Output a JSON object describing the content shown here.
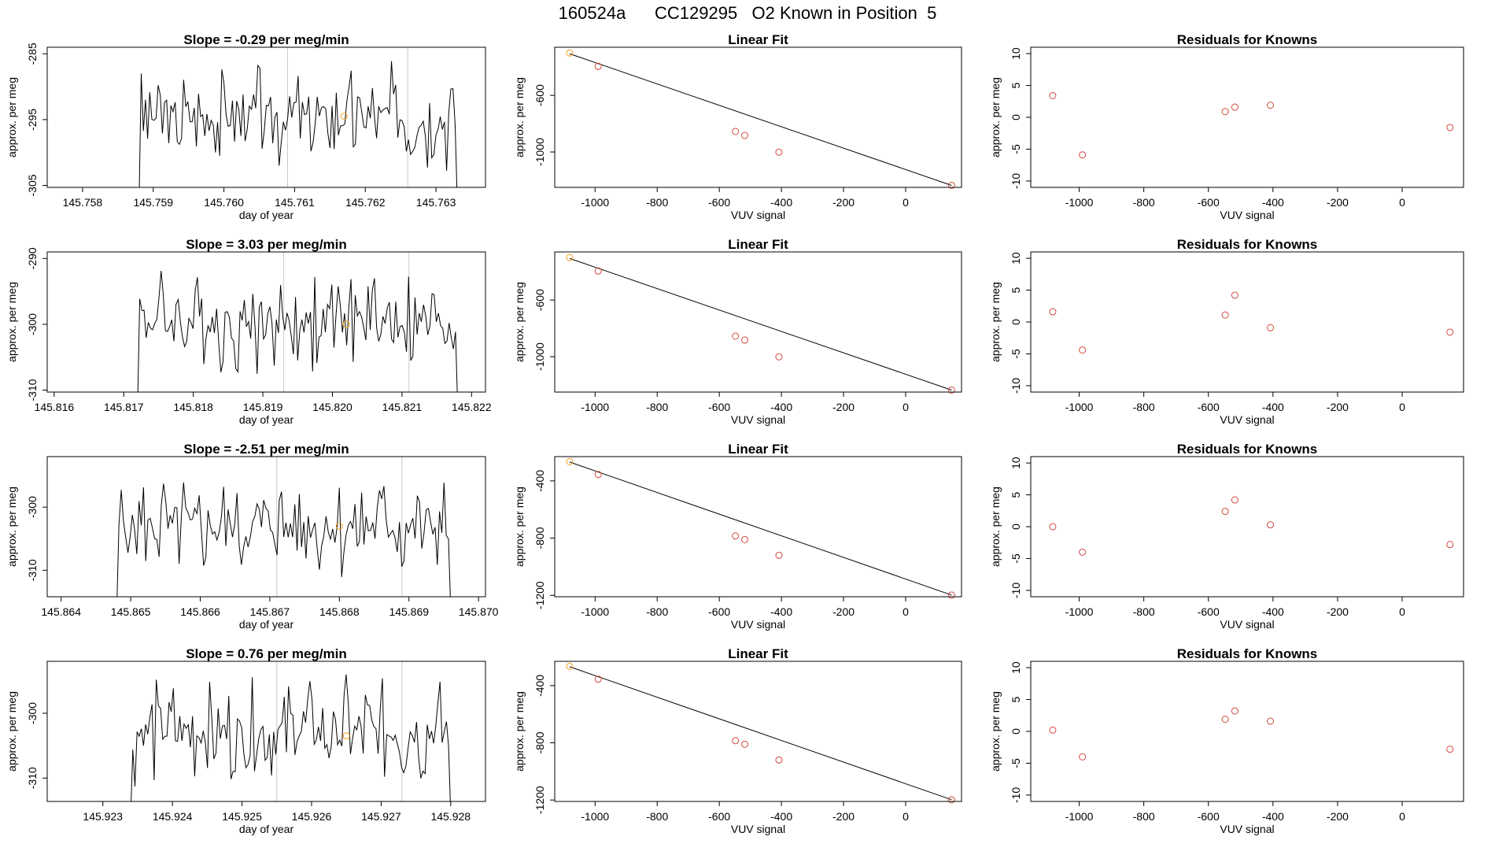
{
  "figure": {
    "title": "160524a      CC129295   O2 Known in Position  5",
    "colors": {
      "trace": "#000000",
      "point": "#d0483c",
      "highlight": "#f0a020",
      "grid": "#c8c8c8"
    }
  },
  "charts": [
    {
      "row": 1,
      "timeseries": {
        "title": "Slope =  -0.29  per meg/min",
        "xlabel": "day of year",
        "ylabel": "approx. per meg",
        "xlim": [
          145.7575,
          145.7637
        ],
        "ylim": [
          -305.3,
          -284.0
        ],
        "xticks": [
          145.758,
          145.759,
          145.76,
          145.761,
          145.762,
          145.763
        ],
        "xtick_labels": [
          "145.758",
          "145.759",
          "145.760",
          "145.761",
          "145.762",
          "145.763"
        ],
        "yticks": [
          -285,
          -295,
          -305
        ],
        "ytick_labels": [
          "-285",
          "-295",
          "-305"
        ],
        "vlines": [
          145.7609,
          145.7626
        ],
        "trace_start": 145.7588,
        "trace_end": 145.7633,
        "marker": {
          "x": 145.7617,
          "y": -294.5
        }
      },
      "linear_fit": {
        "title": "Linear Fit",
        "xlabel": "VUV signal",
        "ylabel": "approx. per meg",
        "xlim": [
          -1130,
          180
        ],
        "ylim": [
          -1250,
          -260
        ],
        "xticks": [
          -1000,
          -800,
          -600,
          -400,
          -200,
          0
        ],
        "yticks": [
          -600,
          -1000
        ],
        "highlight": {
          "x": -1082,
          "y": -300
        },
        "points": [
          {
            "x": -990,
            "y": -395
          },
          {
            "x": -548,
            "y": -855
          },
          {
            "x": -518,
            "y": -883
          },
          {
            "x": -408,
            "y": -1001
          },
          {
            "x": 148,
            "y": -1236
          }
        ],
        "line": [
          [
            -1082,
            -306
          ],
          [
            148,
            -1236
          ]
        ]
      },
      "residuals": {
        "title": "Residuals for Knowns",
        "xlabel": "VUV signal",
        "ylabel": "approx. per meg",
        "xlim": [
          -1150,
          190
        ],
        "ylim": [
          -11,
          11
        ],
        "xticks": [
          -1000,
          -800,
          -600,
          -400,
          -200,
          0
        ],
        "yticks": [
          10,
          5,
          0,
          -5,
          -10
        ],
        "points": [
          {
            "x": -1082,
            "y": 3.4
          },
          {
            "x": -990,
            "y": -5.9
          },
          {
            "x": -548,
            "y": 0.9
          },
          {
            "x": -518,
            "y": 1.6
          },
          {
            "x": -408,
            "y": 1.9
          },
          {
            "x": 148,
            "y": -1.6
          }
        ]
      }
    },
    {
      "row": 2,
      "timeseries": {
        "title": "Slope =  3.03  per meg/min",
        "xlabel": "day of year",
        "ylabel": "approx. per meg",
        "xlim": [
          145.8159,
          145.8222
        ],
        "ylim": [
          -310.3,
          -289.0
        ],
        "xticks": [
          145.816,
          145.817,
          145.818,
          145.819,
          145.82,
          145.821,
          145.822
        ],
        "xtick_labels": [
          "145.816",
          "145.817",
          "145.818",
          "145.819",
          "145.820",
          "145.821",
          "145.822"
        ],
        "yticks": [
          -290,
          -300,
          -310
        ],
        "ytick_labels": [
          "-290",
          "-300",
          "-310"
        ],
        "vlines": [
          145.8193,
          145.8211
        ],
        "trace_start": 145.8172,
        "trace_end": 145.8218,
        "marker": {
          "x": 145.8202,
          "y": -300
        }
      },
      "linear_fit": {
        "title": "Linear Fit",
        "xlabel": "VUV signal",
        "ylabel": "approx. per meg",
        "xlim": [
          -1130,
          180
        ],
        "ylim": [
          -1250,
          -260
        ],
        "xticks": [
          -1000,
          -800,
          -600,
          -400,
          -200,
          0
        ],
        "yticks": [
          -600,
          -1000
        ],
        "highlight": {
          "x": -1082,
          "y": -300
        },
        "points": [
          {
            "x": -990,
            "y": -395
          },
          {
            "x": -548,
            "y": -855
          },
          {
            "x": -518,
            "y": -883
          },
          {
            "x": -408,
            "y": -1001
          },
          {
            "x": 148,
            "y": -1236
          }
        ],
        "line": [
          [
            -1082,
            -306
          ],
          [
            148,
            -1236
          ]
        ]
      },
      "residuals": {
        "title": "Residuals for Knowns",
        "xlabel": "VUV signal",
        "ylabel": "approx. per meg",
        "xlim": [
          -1150,
          190
        ],
        "ylim": [
          -11,
          11
        ],
        "xticks": [
          -1000,
          -800,
          -600,
          -400,
          -200,
          0
        ],
        "yticks": [
          10,
          5,
          0,
          -5,
          -10
        ],
        "points": [
          {
            "x": -1082,
            "y": 1.6
          },
          {
            "x": -990,
            "y": -4.4
          },
          {
            "x": -548,
            "y": 1.1
          },
          {
            "x": -518,
            "y": 4.2
          },
          {
            "x": -408,
            "y": -0.9
          },
          {
            "x": 148,
            "y": -1.6
          }
        ]
      }
    },
    {
      "row": 3,
      "timeseries": {
        "title": "Slope =  -2.51  per meg/min",
        "xlabel": "day of year",
        "ylabel": "approx. per meg",
        "xlim": [
          145.8638,
          145.8701
        ],
        "ylim": [
          -314.2,
          -292.0
        ],
        "xticks": [
          145.864,
          145.865,
          145.866,
          145.867,
          145.868,
          145.869,
          145.87
        ],
        "xtick_labels": [
          "145.864",
          "145.865",
          "145.866",
          "145.867",
          "145.868",
          "145.869",
          "145.870"
        ],
        "yticks": [
          -300,
          -310
        ],
        "ytick_labels": [
          "-300",
          "-310"
        ],
        "vlines": [
          145.8671,
          145.8689
        ],
        "trace_start": 145.8648,
        "trace_end": 145.8696,
        "marker": {
          "x": 145.868,
          "y": -303
        }
      },
      "linear_fit": {
        "title": "Linear Fit",
        "xlabel": "VUV signal",
        "ylabel": "approx. per meg",
        "xlim": [
          -1130,
          180
        ],
        "ylim": [
          -1210,
          -230
        ],
        "xticks": [
          -1000,
          -800,
          -600,
          -400,
          -200,
          0
        ],
        "yticks": [
          -400,
          -800,
          -1200
        ],
        "highlight": {
          "x": -1082,
          "y": -265
        },
        "points": [
          {
            "x": -990,
            "y": -355
          },
          {
            "x": -548,
            "y": -785
          },
          {
            "x": -518,
            "y": -810
          },
          {
            "x": -408,
            "y": -920
          },
          {
            "x": 148,
            "y": -1198
          }
        ],
        "line": [
          [
            -1082,
            -268
          ],
          [
            148,
            -1198
          ]
        ]
      },
      "residuals": {
        "title": "Residuals for Knowns",
        "xlabel": "VUV signal",
        "ylabel": "approx. per meg",
        "xlim": [
          -1150,
          190
        ],
        "ylim": [
          -11,
          11
        ],
        "xticks": [
          -1000,
          -800,
          -600,
          -400,
          -200,
          0
        ],
        "yticks": [
          10,
          5,
          0,
          -5,
          -10
        ],
        "points": [
          {
            "x": -1082,
            "y": 0
          },
          {
            "x": -990,
            "y": -4.0
          },
          {
            "x": -548,
            "y": 2.4
          },
          {
            "x": -518,
            "y": 4.2
          },
          {
            "x": -408,
            "y": 0.3
          },
          {
            "x": 148,
            "y": -2.8
          }
        ]
      }
    },
    {
      "row": 4,
      "timeseries": {
        "title": "Slope =  0.76  per meg/min",
        "xlabel": "day of year",
        "ylabel": "approx. per meg",
        "xlim": [
          145.9222,
          145.9285
        ],
        "ylim": [
          -313.6,
          -292.0
        ],
        "xticks": [
          145.923,
          145.924,
          145.925,
          145.926,
          145.927,
          145.928
        ],
        "xtick_labels": [
          "145.923",
          "145.924",
          "145.925",
          "145.926",
          "145.927",
          "145.928"
        ],
        "yticks": [
          -300,
          -310
        ],
        "ytick_labels": [
          "-300",
          "-310"
        ],
        "vlines": [
          145.9255,
          145.9273
        ],
        "trace_start": 145.9234,
        "trace_end": 145.928,
        "marker": {
          "x": 145.9265,
          "y": -303.5
        }
      },
      "linear_fit": {
        "title": "Linear Fit",
        "xlabel": "VUV signal",
        "ylabel": "approx. per meg",
        "xlim": [
          -1130,
          180
        ],
        "ylim": [
          -1210,
          -230
        ],
        "xticks": [
          -1000,
          -800,
          -600,
          -400,
          -200,
          0
        ],
        "yticks": [
          -400,
          -800,
          -1200
        ],
        "highlight": {
          "x": -1082,
          "y": -265
        },
        "points": [
          {
            "x": -990,
            "y": -355
          },
          {
            "x": -548,
            "y": -785
          },
          {
            "x": -518,
            "y": -810
          },
          {
            "x": -408,
            "y": -920
          },
          {
            "x": 148,
            "y": -1198
          }
        ],
        "line": [
          [
            -1082,
            -268
          ],
          [
            148,
            -1198
          ]
        ]
      },
      "residuals": {
        "title": "Residuals for Knowns",
        "xlabel": "VUV signal",
        "ylabel": "approx. per meg",
        "xlim": [
          -1150,
          190
        ],
        "ylim": [
          -11,
          11
        ],
        "xticks": [
          -1000,
          -800,
          -600,
          -400,
          -200,
          0
        ],
        "yticks": [
          10,
          5,
          0,
          -5,
          -10
        ],
        "points": [
          {
            "x": -1082,
            "y": 0.2
          },
          {
            "x": -990,
            "y": -4.0
          },
          {
            "x": -548,
            "y": 1.9
          },
          {
            "x": -518,
            "y": 3.2
          },
          {
            "x": -408,
            "y": 1.6
          },
          {
            "x": 148,
            "y": -2.8
          }
        ]
      }
    }
  ],
  "chart_data": [
    {
      "type": "line",
      "title": "Slope =  -0.29  per meg/min",
      "xlabel": "day of year",
      "ylabel": "approx. per meg",
      "xlim": [
        145.7575,
        145.7637
      ],
      "ylim": [
        -305.3,
        -284.0
      ]
    },
    {
      "type": "scatter",
      "title": "Linear Fit",
      "xlabel": "VUV signal",
      "ylabel": "approx. per meg",
      "x": [
        -1082,
        -990,
        -548,
        -518,
        -408,
        148
      ],
      "y": [
        -300,
        -395,
        -855,
        -883,
        -1001,
        -1236
      ]
    },
    {
      "type": "scatter",
      "title": "Residuals for Knowns",
      "xlabel": "VUV signal",
      "ylabel": "approx. per meg",
      "x": [
        -1082,
        -990,
        -548,
        -518,
        -408,
        148
      ],
      "y": [
        3.4,
        -5.9,
        0.9,
        1.6,
        1.9,
        -1.6
      ]
    },
    {
      "type": "line",
      "title": "Slope =  3.03  per meg/min",
      "xlabel": "day of year",
      "ylabel": "approx. per meg",
      "xlim": [
        145.8159,
        145.8222
      ],
      "ylim": [
        -310.3,
        -289.0
      ]
    },
    {
      "type": "scatter",
      "title": "Linear Fit",
      "xlabel": "VUV signal",
      "ylabel": "approx. per meg",
      "x": [
        -1082,
        -990,
        -548,
        -518,
        -408,
        148
      ],
      "y": [
        -300,
        -395,
        -855,
        -883,
        -1001,
        -1236
      ]
    },
    {
      "type": "scatter",
      "title": "Residuals for Knowns",
      "xlabel": "VUV signal",
      "ylabel": "approx. per meg",
      "x": [
        -1082,
        -990,
        -548,
        -518,
        -408,
        148
      ],
      "y": [
        1.6,
        -4.4,
        1.1,
        4.2,
        -0.9,
        -1.6
      ]
    },
    {
      "type": "line",
      "title": "Slope =  -2.51  per meg/min",
      "xlabel": "day of year",
      "ylabel": "approx. per meg",
      "xlim": [
        145.8638,
        145.8701
      ],
      "ylim": [
        -314.2,
        -292.0
      ]
    },
    {
      "type": "scatter",
      "title": "Linear Fit",
      "xlabel": "VUV signal",
      "ylabel": "approx. per meg",
      "x": [
        -1082,
        -990,
        -548,
        -518,
        -408,
        148
      ],
      "y": [
        -265,
        -355,
        -785,
        -810,
        -920,
        -1198
      ]
    },
    {
      "type": "scatter",
      "title": "Residuals for Knowns",
      "xlabel": "VUV signal",
      "ylabel": "approx. per meg",
      "x": [
        -1082,
        -990,
        -548,
        -518,
        -408,
        148
      ],
      "y": [
        0,
        -4.0,
        2.4,
        4.2,
        0.3,
        -2.8
      ]
    },
    {
      "type": "line",
      "title": "Slope =  0.76  per meg/min",
      "xlabel": "day of year",
      "ylabel": "approx. per meg",
      "xlim": [
        145.9222,
        145.9285
      ],
      "ylim": [
        -313.6,
        -292.0
      ]
    },
    {
      "type": "scatter",
      "title": "Linear Fit",
      "xlabel": "VUV signal",
      "ylabel": "approx. per meg",
      "x": [
        -1082,
        -990,
        -548,
        -518,
        -408,
        148
      ],
      "y": [
        -265,
        -355,
        -785,
        -810,
        -920,
        -1198
      ]
    },
    {
      "type": "scatter",
      "title": "Residuals for Knowns",
      "xlabel": "VUV signal",
      "ylabel": "approx. per meg",
      "x": [
        -1082,
        -990,
        -548,
        -518,
        -408,
        148
      ],
      "y": [
        0.2,
        -4.0,
        1.9,
        3.2,
        1.6,
        -2.8
      ]
    }
  ]
}
